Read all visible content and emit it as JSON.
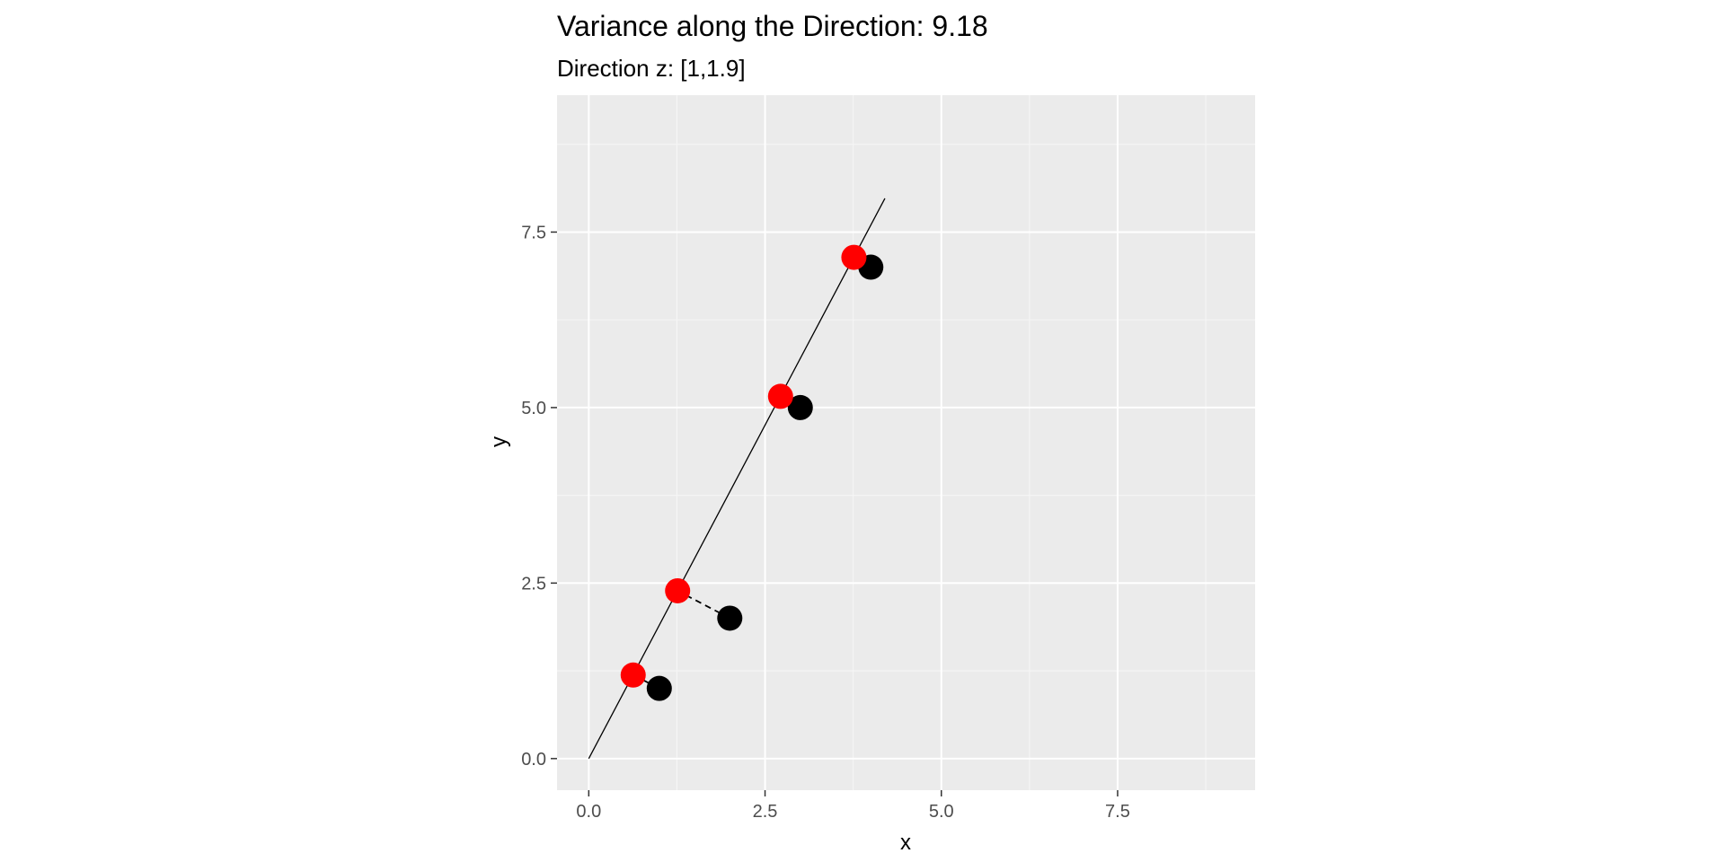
{
  "chart_data": {
    "type": "scatter",
    "title": "Variance along the Direction:  9.18",
    "subtitle": "Direction z: [1,1.9]",
    "xlabel": "x",
    "ylabel": "y",
    "xlim": [
      -0.45,
      9.45
    ],
    "ylim": [
      -0.45,
      9.45
    ],
    "x_ticks": [
      0.0,
      2.5,
      5.0,
      7.5
    ],
    "x_tick_labels": [
      "0.0",
      "2.5",
      "5.0",
      "7.5"
    ],
    "y_ticks": [
      0.0,
      2.5,
      5.0,
      7.5
    ],
    "y_tick_labels": [
      "0.0",
      "2.5",
      "5.0",
      "7.5"
    ],
    "minor_grid": [
      1.25,
      3.75,
      6.25,
      8.75
    ],
    "grid": true,
    "legend": "none",
    "direction_line": {
      "x": [
        0,
        4.2
      ],
      "y": [
        0,
        7.98
      ]
    },
    "series": [
      {
        "role": "original-points",
        "color": "#000000",
        "points": [
          [
            1,
            1
          ],
          [
            2,
            2
          ],
          [
            3,
            5
          ],
          [
            4,
            7
          ]
        ]
      },
      {
        "role": "projected-points",
        "color": "#ff0000",
        "points": [
          [
            0.63,
            1.19
          ],
          [
            1.26,
            2.39
          ],
          [
            2.72,
            5.16
          ],
          [
            3.76,
            7.14
          ]
        ]
      }
    ],
    "connectors": "dashed"
  },
  "colors": {
    "panel_background": "#ebebeb",
    "grid_major": "#ffffff",
    "grid_minor": "#f5f5f5",
    "tick_mark": "#333333",
    "tick_label": "#4d4d4d"
  }
}
